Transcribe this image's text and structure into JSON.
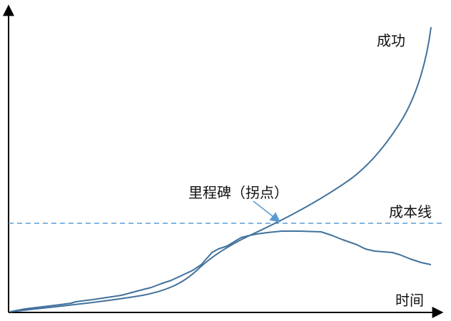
{
  "labels": {
    "success": "成功",
    "cost_line": "成本线",
    "milestone": "里程碑（拐点）",
    "time": "时间"
  },
  "colors": {
    "curve": "#41719c",
    "dashed": "#5b9bd5",
    "arrow": "#5b9bd5",
    "axis": "#000000"
  }
}
